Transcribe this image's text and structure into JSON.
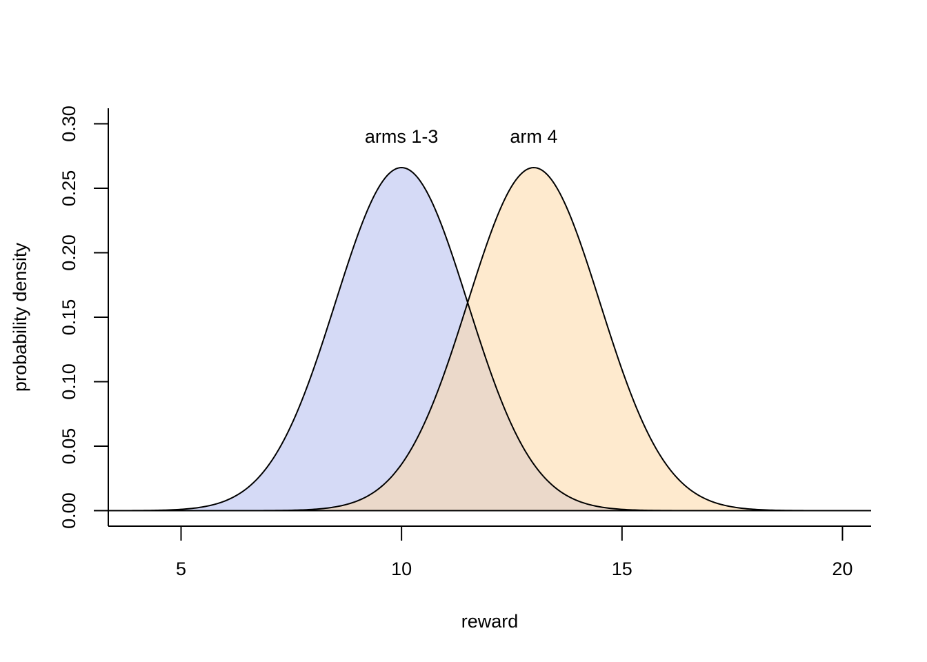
{
  "chart_data": {
    "type": "area",
    "title": "",
    "xlabel": "reward",
    "ylabel": "probability density",
    "xlim": [
      3.35,
      20.65
    ],
    "ylim": [
      -0.012,
      0.312
    ],
    "x_ticks": [
      5,
      10,
      15,
      20
    ],
    "x_tick_labels": [
      "5",
      "10",
      "15",
      "20"
    ],
    "y_ticks": [
      0.0,
      0.05,
      0.1,
      0.15,
      0.2,
      0.25,
      0.3
    ],
    "y_tick_labels": [
      "0.00",
      "0.05",
      "0.10",
      "0.15",
      "0.20",
      "0.25",
      "0.30"
    ],
    "grid": false,
    "legend": "none",
    "baseline": 0,
    "series": [
      {
        "name": "arms 1-3",
        "distribution": "normal",
        "mean": 10,
        "sd": 1.5,
        "peak_density": 0.266,
        "fill": "#b3bbef",
        "fill_opacity": 0.55
      },
      {
        "name": "arm 4",
        "distribution": "normal",
        "mean": 13,
        "sd": 1.5,
        "peak_density": 0.266,
        "fill": "#fdd8a6",
        "fill_opacity": 0.55
      }
    ],
    "annotations": [
      {
        "text": "arms 1-3",
        "x": 10,
        "y": 0.29
      },
      {
        "text": "arm 4",
        "x": 13,
        "y": 0.29
      }
    ],
    "x_range_drawn": [
      3.35,
      20.65
    ]
  }
}
